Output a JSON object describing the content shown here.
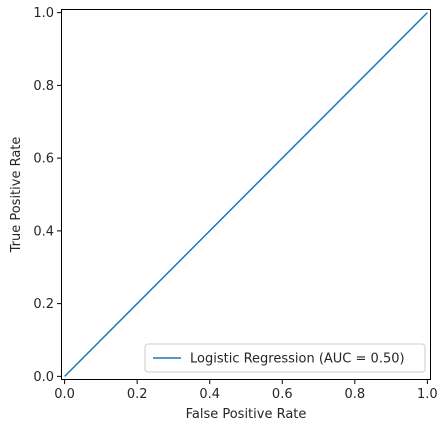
{
  "chart_data": {
    "type": "line",
    "title": "",
    "xlabel": "False Positive Rate",
    "ylabel": "True Positive Rate",
    "xlim": [
      -0.01,
      1.01
    ],
    "ylim": [
      -0.01,
      1.01
    ],
    "xticks": [
      0.0,
      0.2,
      0.4,
      0.6,
      0.8,
      1.0
    ],
    "xtick_labels": [
      "0.0",
      "0.2",
      "0.4",
      "0.6",
      "0.8",
      "1.0"
    ],
    "yticks": [
      0.0,
      0.2,
      0.4,
      0.6,
      0.8,
      1.0
    ],
    "ytick_labels": [
      "0.0",
      "0.2",
      "0.4",
      "0.6",
      "0.8",
      "1.0"
    ],
    "grid": false,
    "legend_position": "bottom-right",
    "series": [
      {
        "name": "Logistic Regression (AUC = 0.50)",
        "color": "#1f77b4",
        "x": [
          0.0,
          1.0
        ],
        "y": [
          0.0,
          1.0
        ]
      }
    ]
  }
}
